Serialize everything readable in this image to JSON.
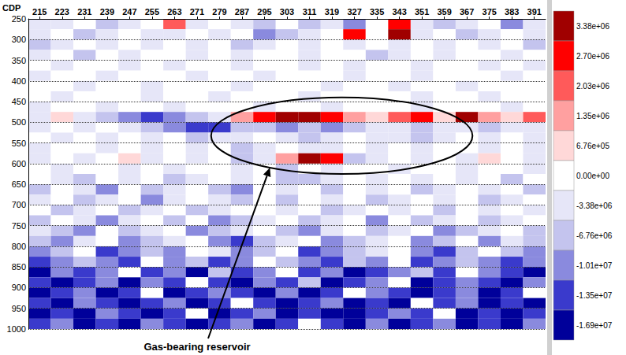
{
  "chart_data": {
    "type": "heatmap",
    "xlabel": "CDP",
    "xlim": [
      211,
      395
    ],
    "xticks": [
      215,
      223,
      231,
      239,
      247,
      255,
      263,
      271,
      279,
      287,
      295,
      303,
      311,
      319,
      327,
      335,
      343,
      351,
      359,
      367,
      375,
      383,
      391
    ],
    "ylim": [
      250,
      1000
    ],
    "yticks": [
      250,
      300,
      350,
      400,
      450,
      500,
      550,
      600,
      650,
      700,
      750,
      800,
      850,
      900,
      950,
      1000
    ],
    "grid": true,
    "x_edges": [
      211,
      219,
      227,
      235,
      243,
      251,
      259,
      267,
      275,
      283,
      291,
      299,
      307,
      315,
      323,
      331,
      339,
      347,
      355,
      363,
      371,
      379,
      387,
      395
    ],
    "y_edges": [
      250,
      275,
      300,
      325,
      350,
      375,
      400,
      425,
      450,
      475,
      500,
      525,
      550,
      575,
      600,
      625,
      650,
      675,
      700,
      725,
      750,
      775,
      800,
      825,
      850,
      875,
      900,
      925,
      950,
      975,
      1000
    ],
    "cells": [
      [
        -3380000.0,
        -3380000.0,
        0,
        -6760000.0,
        -3380000.0,
        0,
        2030000.0,
        -3380000.0,
        0,
        -3380000.0,
        -6760000.0,
        0,
        -6760000.0,
        -3380000.0,
        -10100000.0,
        0,
        2700000.0,
        -3380000.0,
        -6760000.0,
        -3380000.0,
        0,
        -10100000.0,
        -3380000.0
      ],
      [
        -3380000.0,
        0,
        -6760000.0,
        -3380000.0,
        0,
        -3380000.0,
        -3380000.0,
        0,
        -3380000.0,
        0,
        -10100000.0,
        -6760000.0,
        -3380000.0,
        0,
        2700000.0,
        0,
        3380000.0,
        -3380000.0,
        0,
        -6760000.0,
        -3380000.0,
        0,
        -3380000.0
      ],
      [
        -6760000.0,
        -3380000.0,
        0,
        -3380000.0,
        0,
        -3380000.0,
        0,
        -3380000.0,
        0,
        -6760000.0,
        -3380000.0,
        0,
        -3380000.0,
        0,
        -3380000.0,
        0,
        -3380000.0,
        0,
        -3380000.0,
        0,
        -3380000.0,
        0,
        -6760000.0
      ],
      [
        -3380000.0,
        0,
        -6760000.0,
        0,
        -3380000.0,
        0,
        0,
        -3380000.0,
        0,
        -3380000.0,
        0,
        0,
        -3380000.0,
        0,
        0,
        -6760000.0,
        -3380000.0,
        0,
        -3380000.0,
        0,
        0,
        -3380000.0,
        0
      ],
      [
        0,
        -3380000.0,
        0,
        0,
        -3380000.0,
        0,
        -3380000.0,
        0,
        0,
        -3380000.0,
        0,
        0,
        -3380000.0,
        0,
        -3380000.0,
        0,
        0,
        -3380000.0,
        0,
        0,
        -3380000.0,
        0,
        -3380000.0
      ],
      [
        -3380000.0,
        0,
        0,
        -3380000.0,
        0,
        0,
        0,
        -3380000.0,
        0,
        0,
        -3380000.0,
        0,
        0,
        0,
        -3380000.0,
        0,
        0,
        -3380000.0,
        0,
        0,
        0,
        -3380000.0,
        0
      ],
      [
        0,
        0,
        -3380000.0,
        0,
        0,
        -3380000.0,
        0,
        0,
        0,
        -3380000.0,
        0,
        0,
        0,
        -3380000.0,
        0,
        0,
        -3380000.0,
        0,
        0,
        -3380000.0,
        0,
        0,
        0
      ],
      [
        0,
        -3380000.0,
        0,
        0,
        0,
        -3380000.0,
        0,
        0,
        -3380000.0,
        0,
        0,
        0,
        -3380000.0,
        0,
        0,
        0,
        0,
        -3380000.0,
        0,
        0,
        -3380000.0,
        0,
        0
      ],
      [
        -3380000.0,
        0,
        0,
        -3380000.0,
        0,
        0,
        -3380000.0,
        0,
        0,
        0,
        -3380000.0,
        0,
        0,
        -3380000.0,
        0,
        0,
        0,
        -3380000.0,
        0,
        0,
        0,
        -3380000.0,
        0
      ],
      [
        -3380000.0,
        676000.0,
        -3380000.0,
        -6760000.0,
        -10100000.0,
        -13500000.0,
        -10100000.0,
        -6760000.0,
        -3380000.0,
        1350000.0,
        2700000.0,
        3380000.0,
        3380000.0,
        2700000.0,
        1350000.0,
        676000.0,
        2030000.0,
        2700000.0,
        676000.0,
        3380000.0,
        1350000.0,
        676000.0,
        2030000.0
      ],
      [
        -3380000.0,
        0,
        -3380000.0,
        0,
        -3380000.0,
        -6760000.0,
        -10100000.0,
        -13500000.0,
        -13500000.0,
        -6760000.0,
        -6760000.0,
        -10100000.0,
        -6760000.0,
        -10100000.0,
        -6760000.0,
        -3380000.0,
        -3380000.0,
        -6760000.0,
        -3380000.0,
        -3380000.0,
        -6760000.0,
        -3380000.0,
        -3380000.0
      ],
      [
        0,
        -3380000.0,
        0,
        -3380000.0,
        0,
        -3380000.0,
        0,
        -6760000.0,
        -3380000.0,
        -3380000.0,
        0,
        -3380000.0,
        -6760000.0,
        -3380000.0,
        0,
        -3380000.0,
        -3380000.0,
        -6760000.0,
        -3380000.0,
        0,
        -3380000.0,
        0,
        -3380000.0
      ],
      [
        -3380000.0,
        0,
        0,
        -3380000.0,
        0,
        -3380000.0,
        0,
        -3380000.0,
        0,
        -6760000.0,
        -3380000.0,
        0,
        -3380000.0,
        -3380000.0,
        0,
        -3380000.0,
        0,
        -3380000.0,
        0,
        0,
        -3380000.0,
        0,
        -3380000.0
      ],
      [
        -3380000.0,
        0,
        -3380000.0,
        0,
        676000.0,
        -3380000.0,
        0,
        -3380000.0,
        0,
        -6760000.0,
        -3380000.0,
        1350000.0,
        3380000.0,
        2700000.0,
        -6760000.0,
        -3380000.0,
        0,
        -3380000.0,
        0,
        -3380000.0,
        676000.0,
        0,
        -3380000.0
      ],
      [
        0,
        -3380000.0,
        0,
        0,
        -3380000.0,
        0,
        -3380000.0,
        0,
        0,
        -3380000.0,
        0,
        -6760000.0,
        0,
        -3380000.0,
        0,
        0,
        -3380000.0,
        0,
        0,
        -3380000.0,
        0,
        0,
        -3380000.0
      ],
      [
        0,
        -3380000.0,
        -6760000.0,
        0,
        -3380000.0,
        0,
        -6760000.0,
        -3380000.0,
        0,
        -3380000.0,
        0,
        -6760000.0,
        -6760000.0,
        -3380000.0,
        0,
        -3380000.0,
        0,
        -3380000.0,
        0,
        -3380000.0,
        0,
        -6760000.0,
        0
      ],
      [
        -6760000.0,
        0,
        -3380000.0,
        -10100000.0,
        0,
        -6760000.0,
        -3380000.0,
        0,
        -6760000.0,
        -10100000.0,
        0,
        -3380000.0,
        0,
        -6760000.0,
        0,
        -3380000.0,
        0,
        -6760000.0,
        -3380000.0,
        0,
        -3380000.0,
        0,
        -6760000.0
      ],
      [
        -3380000.0,
        0,
        -6760000.0,
        -3380000.0,
        0,
        -10100000.0,
        -3380000.0,
        0,
        -3380000.0,
        -6760000.0,
        0,
        -6760000.0,
        0,
        -3380000.0,
        0,
        -6760000.0,
        -3380000.0,
        0,
        -3380000.0,
        0,
        -6760000.0,
        -3380000.0,
        0
      ],
      [
        0,
        -6760000.0,
        -3380000.0,
        0,
        -6760000.0,
        -3380000.0,
        0,
        -6760000.0,
        -3380000.0,
        0,
        0,
        -3380000.0,
        0,
        -6760000.0,
        -3380000.0,
        0,
        -3380000.0,
        0,
        -6760000.0,
        0,
        -3380000.0,
        0,
        -3380000.0
      ],
      [
        -6760000.0,
        0,
        -3380000.0,
        -10100000.0,
        -3380000.0,
        0,
        -6760000.0,
        0,
        -10100000.0,
        -6760000.0,
        -3380000.0,
        0,
        -6760000.0,
        -3380000.0,
        0,
        -10100000.0,
        0,
        -6760000.0,
        -3380000.0,
        0,
        -6760000.0,
        -3380000.0,
        0
      ],
      [
        -3380000.0,
        -6760000.0,
        -10100000.0,
        0,
        -6760000.0,
        -3380000.0,
        0,
        -10100000.0,
        -6760000.0,
        -3380000.0,
        0,
        -6760000.0,
        -10100000.0,
        -3380000.0,
        0,
        -6760000.0,
        -3380000.0,
        0,
        -10100000.0,
        -6760000.0,
        -3380000.0,
        0,
        -6760000.0
      ],
      [
        -6760000.0,
        -10100000.0,
        -3380000.0,
        0,
        -10100000.0,
        -6760000.0,
        -3380000.0,
        0,
        -10100000.0,
        -13500000.0,
        -6760000.0,
        -3380000.0,
        0,
        -10100000.0,
        -6760000.0,
        -3380000.0,
        0,
        -10100000.0,
        -6760000.0,
        0,
        -10100000.0,
        -3380000.0,
        -6760000.0
      ],
      [
        -10100000.0,
        -6760000.0,
        0,
        -13500000.0,
        -10100000.0,
        -6760000.0,
        -10100000.0,
        0,
        -3380000.0,
        -10100000.0,
        -6760000.0,
        0,
        -13500000.0,
        -10100000.0,
        -6760000.0,
        -3380000.0,
        0,
        -10100000.0,
        -13500000.0,
        -6760000.0,
        0,
        -6760000.0,
        -10100000.0
      ],
      [
        -13500000.0,
        -10100000.0,
        -6760000.0,
        -10100000.0,
        -13500000.0,
        0,
        -10100000.0,
        -6760000.0,
        -13500000.0,
        -10100000.0,
        0,
        -6760000.0,
        -10100000.0,
        -13500000.0,
        -6760000.0,
        -10100000.0,
        0,
        -13500000.0,
        -10100000.0,
        -6760000.0,
        -10100000.0,
        -13500000.0,
        -10100000.0
      ],
      [
        -16900000.0,
        -10100000.0,
        -13500000.0,
        -10100000.0,
        0,
        -13500000.0,
        -10100000.0,
        -16900000.0,
        -6760000.0,
        -13500000.0,
        -10100000.0,
        0,
        -13500000.0,
        -10100000.0,
        -16900000.0,
        -13500000.0,
        -10100000.0,
        -6760000.0,
        -13500000.0,
        0,
        -10100000.0,
        -13500000.0,
        -16900000.0
      ],
      [
        -13500000.0,
        -16900000.0,
        -13500000.0,
        -10100000.0,
        -16900000.0,
        -10100000.0,
        -13500000.0,
        0,
        -13500000.0,
        -16900000.0,
        -10100000.0,
        -13500000.0,
        -6760000.0,
        -16900000.0,
        -13500000.0,
        -10100000.0,
        0,
        -16900000.0,
        -13500000.0,
        -10100000.0,
        -13500000.0,
        -16900000.0,
        -10100000.0
      ],
      [
        -16900000.0,
        -13500000.0,
        -10100000.0,
        -16900000.0,
        -13500000.0,
        0,
        -16900000.0,
        -13500000.0,
        -10100000.0,
        -13500000.0,
        -16900000.0,
        -10100000.0,
        -16900000.0,
        -13500000.0,
        0,
        -10100000.0,
        -13500000.0,
        -16900000.0,
        -13500000.0,
        -10100000.0,
        -16900000.0,
        -13500000.0,
        0
      ],
      [
        -13500000.0,
        -16900000.0,
        -10100000.0,
        -13500000.0,
        -16900000.0,
        -13500000.0,
        -10100000.0,
        -16900000.0,
        -13500000.0,
        0,
        -13500000.0,
        -16900000.0,
        -13500000.0,
        -10100000.0,
        -16900000.0,
        -13500000.0,
        -16900000.0,
        0,
        -13500000.0,
        -10100000.0,
        -16900000.0,
        -13500000.0,
        -16900000.0
      ],
      [
        -16900000.0,
        -13500000.0,
        -16900000.0,
        -10100000.0,
        -13500000.0,
        -16900000.0,
        -13500000.0,
        0,
        -16900000.0,
        -13500000.0,
        -10100000.0,
        -16900000.0,
        -13500000.0,
        -16900000.0,
        -16900000.0,
        -13500000.0,
        -10100000.0,
        -13500000.0,
        0,
        -16900000.0,
        -13500000.0,
        -16900000.0,
        -13500000.0
      ],
      [
        -13500000.0,
        -10100000.0,
        -16900000.0,
        -13500000.0,
        -16900000.0,
        -10100000.0,
        -13500000.0,
        -16900000.0,
        -13500000.0,
        -10100000.0,
        -16900000.0,
        -13500000.0,
        0,
        -13500000.0,
        -16900000.0,
        -10100000.0,
        -16900000.0,
        -13500000.0,
        -10100000.0,
        -16900000.0,
        -13500000.0,
        -16900000.0,
        -10100000.0
      ]
    ],
    "colorbar": {
      "ticks": [
        {
          "value": 3380000,
          "label": "3.38e+06"
        },
        {
          "value": 2700000,
          "label": "2.70e+06"
        },
        {
          "value": 2030000,
          "label": "2.03e+06"
        },
        {
          "value": 1350000,
          "label": "1.35e+06"
        },
        {
          "value": 676000,
          "label": "6.76e+05"
        },
        {
          "value": 0,
          "label": "0.00e+00"
        },
        {
          "value": -3380000,
          "label": "-3.38e+06"
        },
        {
          "value": -6760000,
          "label": "-6.76e+06"
        },
        {
          "value": -10100000,
          "label": "-1.01e+07"
        },
        {
          "value": -13500000,
          "label": "-1.35e+07"
        },
        {
          "value": -16900000,
          "label": "-1.69e+07"
        }
      ],
      "colors": [
        "#a00000",
        "#ff0000",
        "#ff5a5a",
        "#ffa0a0",
        "#ffd8d8",
        "#ffffff",
        "#e6e6f8",
        "#c4c4ee",
        "#8a8ade",
        "#3a3acc",
        "#00009a"
      ]
    },
    "annotations": [
      {
        "text": "Gas-bearing reservoir",
        "x_range": [
          276,
          369
        ],
        "y_range": [
          440,
          625
        ]
      }
    ]
  }
}
